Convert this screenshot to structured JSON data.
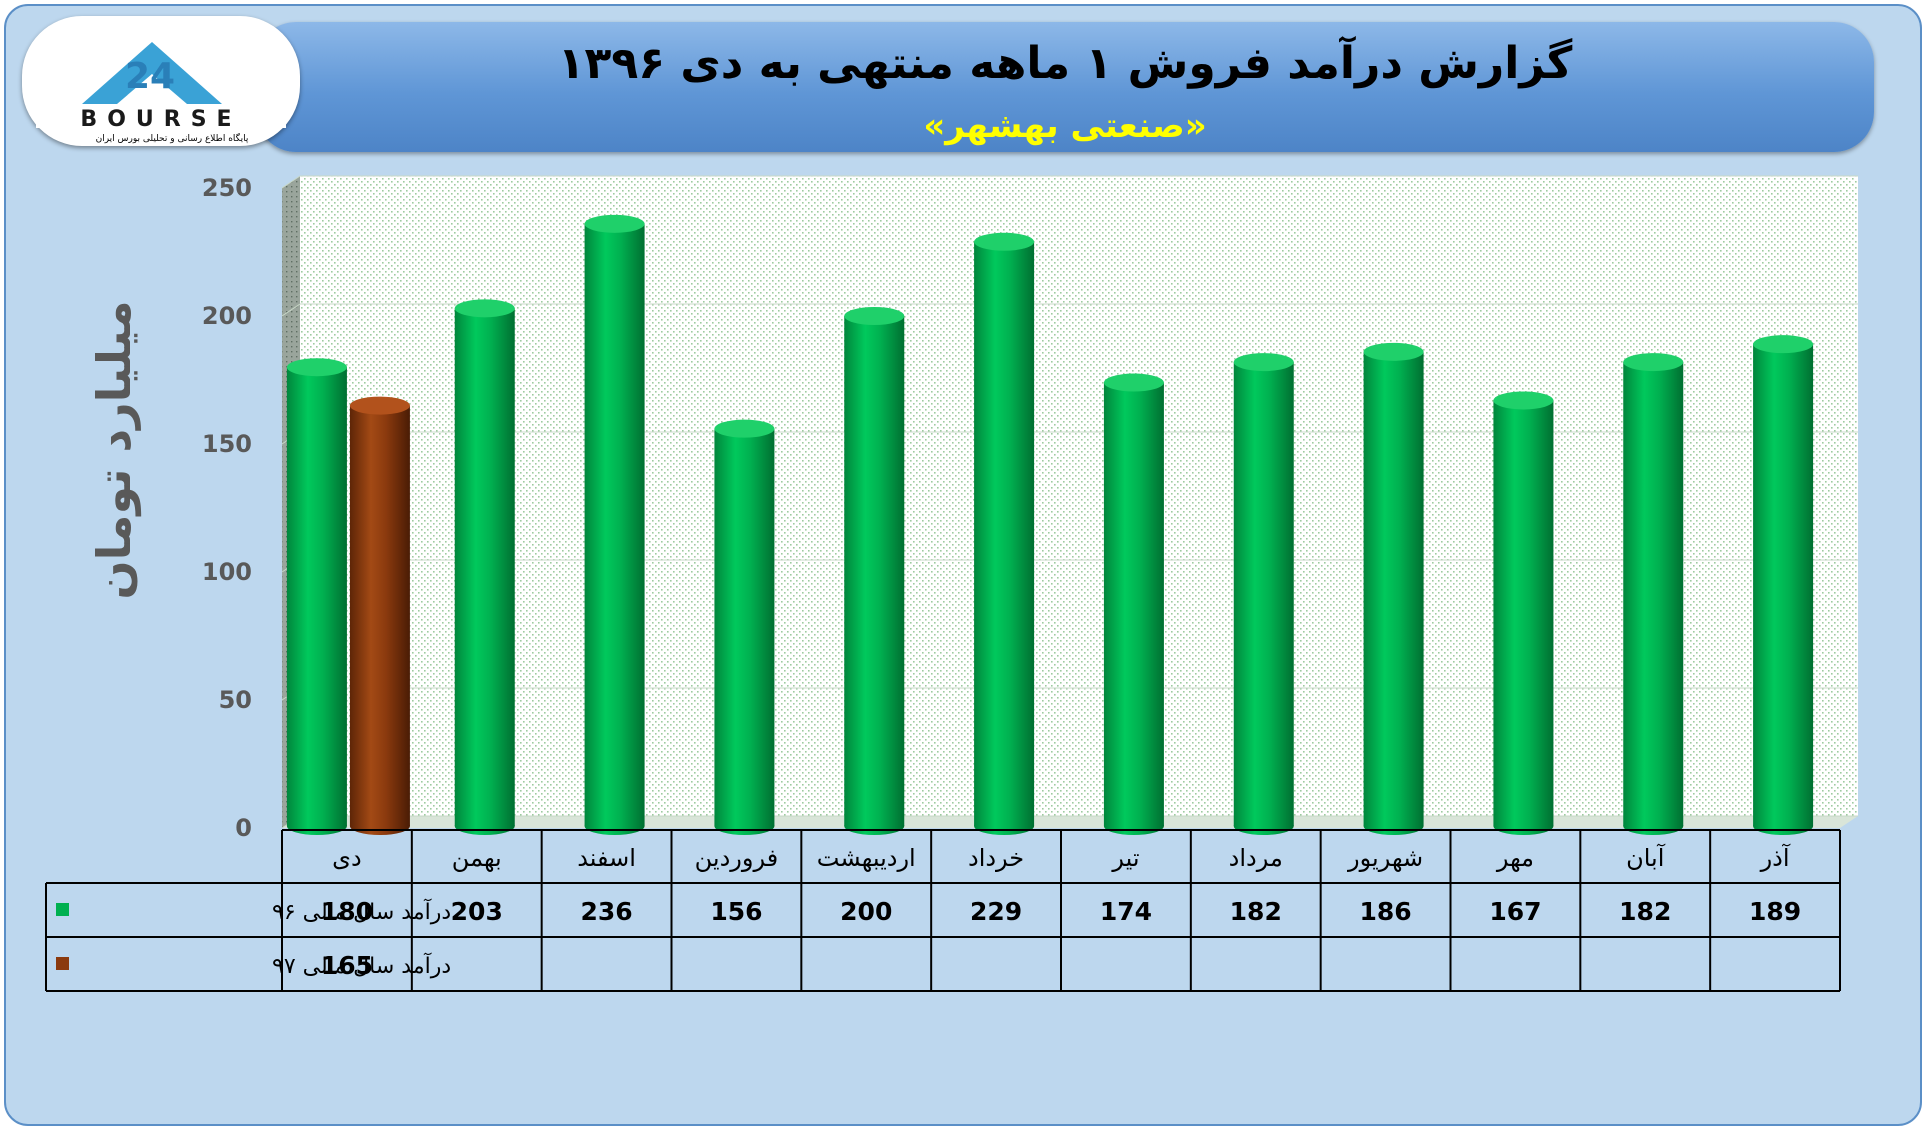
{
  "header": {
    "title": "گزارش درآمد فروش ۱ ماهه منتهی به دی ۱۳۹۶",
    "subtitle": "«صنعتی بهشهر»"
  },
  "logo": {
    "text": "BOURSE",
    "number": "24",
    "tagline": "پایگاه اطلاع رسانی و تحلیلی بورس ایران"
  },
  "chart_data": {
    "type": "bar",
    "ylabel": "میلیارد تومان",
    "ylim": [
      0,
      250
    ],
    "yticks": [
      0,
      50,
      100,
      150,
      200,
      250
    ],
    "grid": true,
    "categories": [
      "دی",
      "بهمن",
      "اسفند",
      "فروردین",
      "اردیبهشت",
      "خرداد",
      "تیر",
      "مرداد",
      "شهریور",
      "مهر",
      "آبان",
      "آذر"
    ],
    "series": [
      {
        "name": "درآمد سال مالی ۹۶",
        "color": "#00b050",
        "values": [
          180,
          203,
          236,
          156,
          200,
          229,
          174,
          182,
          186,
          167,
          182,
          189
        ]
      },
      {
        "name": "درآمد سال مالی ۹۷",
        "color": "#8b3a0e",
        "values": [
          165,
          null,
          null,
          null,
          null,
          null,
          null,
          null,
          null,
          null,
          null,
          null
        ]
      }
    ]
  }
}
